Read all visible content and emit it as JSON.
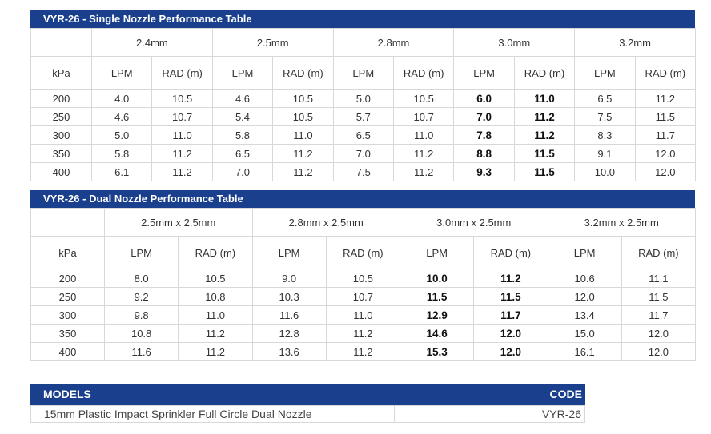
{
  "single": {
    "title": "VYR-26 - Single Nozzle Performance Table",
    "first_col_label": "kPa",
    "groups": [
      "2.4mm",
      "2.5mm",
      "2.8mm",
      "3.0mm",
      "3.2mm"
    ],
    "sub_labels": [
      "LPM",
      "RAD (m)"
    ],
    "rows": [
      {
        "kpa": "200",
        "cells": [
          "4.0",
          "10.5",
          "4.6",
          "10.5",
          "5.0",
          "10.5",
          "6.0",
          "11.0",
          "6.5",
          "11.2"
        ]
      },
      {
        "kpa": "250",
        "cells": [
          "4.6",
          "10.7",
          "5.4",
          "10.5",
          "5.7",
          "10.7",
          "7.0",
          "11.2",
          "7.5",
          "11.5"
        ]
      },
      {
        "kpa": "300",
        "cells": [
          "5.0",
          "11.0",
          "5.8",
          "11.0",
          "6.5",
          "11.0",
          "7.8",
          "11.2",
          "8.3",
          "11.7"
        ]
      },
      {
        "kpa": "350",
        "cells": [
          "5.8",
          "11.2",
          "6.5",
          "11.2",
          "7.0",
          "11.2",
          "8.8",
          "11.5",
          "9.1",
          "12.0"
        ]
      },
      {
        "kpa": "400",
        "cells": [
          "6.1",
          "11.2",
          "7.0",
          "11.2",
          "7.5",
          "11.2",
          "9.3",
          "11.5",
          "10.0",
          "12.0"
        ]
      }
    ],
    "bold_group": 3
  },
  "dual": {
    "title": "VYR-26 - Dual Nozzle Performance Table",
    "first_col_label": "kPa",
    "groups": [
      "2.5mm x 2.5mm",
      "2.8mm x 2.5mm",
      "3.0mm x 2.5mm",
      "3.2mm x 2.5mm"
    ],
    "sub_labels": [
      "LPM",
      "RAD (m)"
    ],
    "rows": [
      {
        "kpa": "200",
        "cells": [
          "8.0",
          "10.5",
          "9.0",
          "10.5",
          "10.0",
          "11.2",
          "10.6",
          "11.1"
        ]
      },
      {
        "kpa": "250",
        "cells": [
          "9.2",
          "10.8",
          "10.3",
          "10.7",
          "11.5",
          "11.5",
          "12.0",
          "11.5"
        ]
      },
      {
        "kpa": "300",
        "cells": [
          "9.8",
          "11.0",
          "11.6",
          "11.0",
          "12.9",
          "11.7",
          "13.4",
          "11.7"
        ]
      },
      {
        "kpa": "350",
        "cells": [
          "10.8",
          "11.2",
          "12.8",
          "11.2",
          "14.6",
          "12.0",
          "15.0",
          "12.0"
        ]
      },
      {
        "kpa": "400",
        "cells": [
          "11.6",
          "11.2",
          "13.6",
          "11.2",
          "15.3",
          "12.0",
          "16.1",
          "12.0"
        ]
      }
    ],
    "bold_group": 2
  },
  "models": {
    "header_left": "MODELS",
    "header_right": "CODE",
    "description": "15mm Plastic Impact Sprinkler Full Circle Dual Nozzle",
    "code": "VYR-26"
  },
  "colors": {
    "header_bg": "#1a3f8c",
    "header_text": "#ffffff",
    "border": "#d8d8d8"
  }
}
